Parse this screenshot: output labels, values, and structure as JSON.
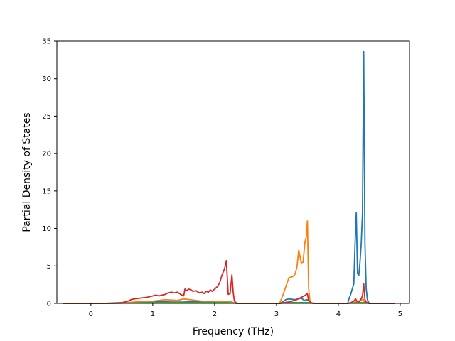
{
  "chart_data": {
    "type": "line",
    "title": "",
    "xlabel": "Frequency (THz)",
    "ylabel": "Partial Density of States",
    "xlim": [
      -0.55,
      5.15
    ],
    "ylim": [
      0,
      35
    ],
    "xticks": [
      0,
      1,
      2,
      3,
      4,
      5
    ],
    "yticks": [
      0,
      5,
      10,
      15,
      20,
      25,
      30,
      35
    ],
    "grid": false,
    "legend": "none",
    "series": [
      {
        "color": "#1f77b4",
        "x": [
          -0.45,
          0.3,
          0.6,
          0.8,
          1.0,
          1.3,
          1.5,
          1.7,
          1.9,
          2.1,
          2.2,
          2.25,
          2.3,
          2.34,
          2.36,
          3.05,
          3.1,
          3.15,
          3.2,
          3.3,
          3.4,
          3.45,
          3.5,
          3.55,
          3.6,
          4.15,
          4.18,
          4.2,
          4.22,
          4.25,
          4.27,
          4.29,
          4.31,
          4.33,
          4.35,
          4.37,
          4.39,
          4.41,
          4.43,
          4.45,
          4.47,
          4.5,
          4.92
        ],
        "y": [
          0,
          0,
          0.05,
          0.15,
          0.2,
          0.3,
          0.3,
          0.2,
          0.2,
          0.1,
          0.1,
          0.3,
          0.1,
          0.05,
          0,
          0,
          0.2,
          0.5,
          0.6,
          0.5,
          0.7,
          0.4,
          0.5,
          0.1,
          0,
          0,
          0.8,
          1.2,
          1.8,
          2.6,
          8.0,
          12.1,
          4.0,
          3.7,
          5.5,
          8.0,
          12.0,
          33.6,
          8.0,
          2.0,
          0.5,
          0,
          0
        ]
      },
      {
        "color": "#ff7f0e",
        "x": [
          -0.45,
          0.3,
          0.6,
          0.8,
          1.0,
          1.2,
          1.4,
          1.5,
          1.6,
          1.8,
          2.0,
          2.1,
          2.2,
          2.25,
          2.3,
          2.36,
          3.05,
          3.1,
          3.15,
          3.2,
          3.27,
          3.3,
          3.33,
          3.36,
          3.4,
          3.43,
          3.46,
          3.48,
          3.5,
          3.52,
          3.54,
          3.56,
          3.6,
          4.15,
          4.25,
          4.3,
          4.35,
          4.4,
          4.42,
          4.45,
          4.5,
          4.92
        ],
        "y": [
          0,
          0,
          0.1,
          0.25,
          0.3,
          0.5,
          0.4,
          0.6,
          0.5,
          0.3,
          0.3,
          0.2,
          0.2,
          0.3,
          0.1,
          0,
          0,
          1.0,
          2.2,
          3.4,
          3.6,
          3.9,
          4.8,
          7.1,
          5.4,
          5.5,
          8.2,
          8.8,
          11.0,
          2.0,
          0.4,
          0.1,
          0,
          0,
          0.1,
          0.3,
          0.3,
          0.6,
          0.2,
          0.1,
          0,
          0
        ]
      },
      {
        "color": "#2ca02c",
        "x": [
          -0.45,
          0.3,
          0.6,
          1.0,
          1.5,
          2.0,
          2.2,
          2.3,
          2.36,
          3.05,
          3.2,
          3.4,
          3.5,
          3.6,
          4.15,
          4.3,
          4.4,
          4.45,
          4.5,
          4.92
        ],
        "y": [
          0,
          0,
          0.05,
          0.1,
          0.1,
          0.1,
          0.1,
          0.05,
          0,
          0,
          0.1,
          0.1,
          0.1,
          0,
          0,
          0.1,
          0.1,
          0.1,
          0,
          0
        ]
      },
      {
        "color": "#d62728",
        "x": [
          -0.45,
          0.2,
          0.5,
          0.6,
          0.65,
          0.7,
          0.8,
          0.9,
          1.0,
          1.05,
          1.1,
          1.15,
          1.2,
          1.25,
          1.3,
          1.35,
          1.4,
          1.45,
          1.5,
          1.52,
          1.55,
          1.58,
          1.62,
          1.65,
          1.7,
          1.73,
          1.76,
          1.8,
          1.83,
          1.86,
          1.9,
          1.93,
          1.96,
          2.0,
          2.04,
          2.08,
          2.12,
          2.16,
          2.19,
          2.22,
          2.25,
          2.28,
          2.3,
          2.32,
          2.36,
          3.05,
          3.2,
          3.3,
          3.4,
          3.45,
          3.5,
          3.52,
          3.56,
          3.6,
          4.15,
          4.2,
          4.25,
          4.28,
          4.3,
          4.33,
          4.36,
          4.39,
          4.41,
          4.43,
          4.45,
          4.47,
          4.5,
          4.92
        ],
        "y": [
          0,
          0,
          0.1,
          0.3,
          0.5,
          0.6,
          0.7,
          0.8,
          1.0,
          1.1,
          1.0,
          1.1,
          1.2,
          1.4,
          1.5,
          1.4,
          1.5,
          1.2,
          1.0,
          1.9,
          1.7,
          1.9,
          1.8,
          1.6,
          1.7,
          1.5,
          1.4,
          1.5,
          1.3,
          1.6,
          1.5,
          1.8,
          1.6,
          1.9,
          2.2,
          2.7,
          3.8,
          4.6,
          5.7,
          1.2,
          1.3,
          3.8,
          1.5,
          0.3,
          0,
          0,
          0.2,
          0.4,
          0.8,
          1.0,
          1.3,
          0.4,
          0.1,
          0,
          0,
          0.1,
          0.3,
          0.6,
          0.3,
          0.2,
          0.5,
          1.0,
          2.6,
          0.5,
          0.2,
          0.1,
          0,
          0
        ]
      }
    ]
  }
}
